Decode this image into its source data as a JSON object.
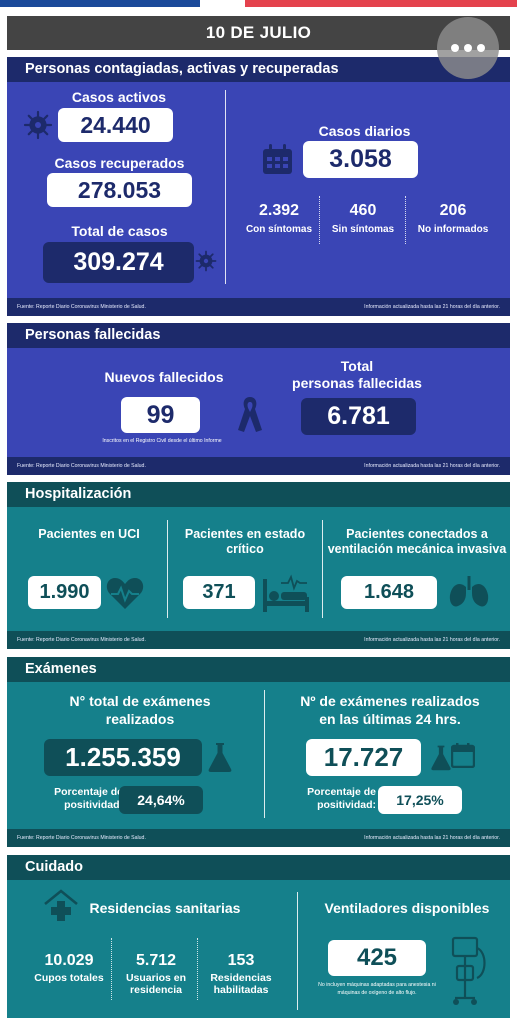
{
  "date": "10 DE JULIO",
  "colors": {
    "blue_dark": "#1d2a6b",
    "blue_body": "#3a45b5",
    "teal_dark": "#0f4f58",
    "teal_body": "#15808b",
    "flag_blue": "#1b4a9a",
    "flag_red": "#e4424d"
  },
  "icons": [
    "more-options-icon",
    "virus-icon",
    "calendar-icon",
    "ribbon-icon",
    "heart-pulse-icon",
    "hospital-bed-icon",
    "lungs-icon",
    "flask-icon",
    "calendar-small-icon",
    "house-cross-icon",
    "ventilator-icon"
  ],
  "contagiados": {
    "header": "Personas contagiadas, activas y recuperadas",
    "activos_label": "Casos activos",
    "activos_value": "24.440",
    "recuperados_label": "Casos recuperados",
    "recuperados_value": "278.053",
    "total_label": "Total de casos",
    "total_value": "309.274",
    "diarios_label": "Casos diarios",
    "diarios_value": "3.058",
    "con_value": "2.392",
    "con_label": "Con síntomas",
    "sin_value": "460",
    "sin_label": "Sin síntomas",
    "noinf_value": "206",
    "noinf_label": "No informados",
    "source": "Fuente: Reporte Diario Coronavirus Ministerio de Salud.",
    "updated": "Información actualizada hasta las 21 horas  del día anterior."
  },
  "fallecidas": {
    "header": "Personas fallecidas",
    "nuevos_label": "Nuevos fallecidos",
    "nuevos_value": "99",
    "nuevos_note": "Inscritos en el Registro Civil desde el último Informe",
    "total_label_1": "Total",
    "total_label_2": "personas fallecidas",
    "total_value": "6.781",
    "source": "Fuente: Reporte Diario Coronavirus Ministerio de Salud.",
    "updated": "Información actualizada hasta las 21 horas  del día anterior."
  },
  "hospitalizacion": {
    "header": "Hospitalización",
    "uci_label": "Pacientes en UCI",
    "uci_value": "1.990",
    "critico_label_1": "Pacientes en estado",
    "critico_label_2": "crítico",
    "critico_value": "371",
    "vent_label_1": "Pacientes conectados a",
    "vent_label_2": "ventilación mecánica invasiva",
    "vent_value": "1.648",
    "source": "Fuente: Reporte Diario Coronavirus Ministerio de Salud.",
    "updated": "Información actualizada hasta las 21 horas  del día anterior."
  },
  "examenes": {
    "header": "Exámenes",
    "total_label_1": "N° total de exámenes",
    "total_label_2": "realizados",
    "total_value": "1.255.359",
    "pos_label_1": "Porcentaje de",
    "pos_label_2": "positividad:",
    "pos_total": "24,64%",
    "ult_label_1": "Nº de exámenes realizados",
    "ult_label_2": "en las últimas 24 hrs.",
    "ult_value": "17.727",
    "pos_ult": "17,25%",
    "source": "Fuente: Reporte Diario Coronavirus Ministerio de Salud.",
    "updated": "Información actualizada hasta las 21 horas  del día anterior."
  },
  "cuidado": {
    "header": "Cuidado",
    "residencias_label": "Residencias sanitarias",
    "cupos_value": "10.029",
    "cupos_label": "Cupos totales",
    "usuarios_value": "5.712",
    "usuarios_label_1": "Usuarios en",
    "usuarios_label_2": "residencia",
    "habil_value": "153",
    "habil_label_1": "Residencias",
    "habil_label_2": "habilitadas",
    "vent_label": "Ventiladores disponibles",
    "vent_value": "425",
    "vent_note_1": "No incluyen máquinas adaptadas para anestesia ni",
    "vent_note_2": "máquinas de oxígeno de alto flujo."
  }
}
